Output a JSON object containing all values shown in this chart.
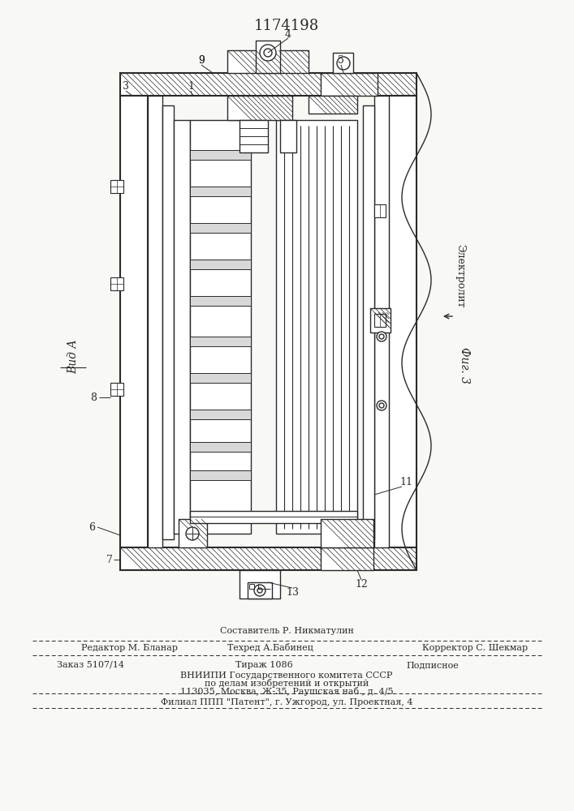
{
  "patent_number": "1174198",
  "background_color": "#f8f8f5",
  "line_color": "#2a2a2a",
  "fig_label": "Фиг. 3",
  "vid_label": "Вид А",
  "electrolyte_label": "Электролит",
  "footer": {
    "line1": "Составитель Р. Никматулин",
    "line2_left": "Редактор М. Бланар",
    "line2_mid": "Техред А.Бабинец",
    "line2_right": "Корректор С. Шекмар",
    "line3_left": "Заказ 5107/14",
    "line3_mid": "Тираж 1086",
    "line3_right": "Подписное",
    "line4": "ВНИИПИ Государственного комитета СССР",
    "line5": "по делам изобретений и открытий",
    "line6": "113035, Москва, Ж-35, Раушская наб., д. 4/5",
    "line7": "Филиал ППП \"Патент\", г. Ужгород, ул. Проектная, 4"
  }
}
